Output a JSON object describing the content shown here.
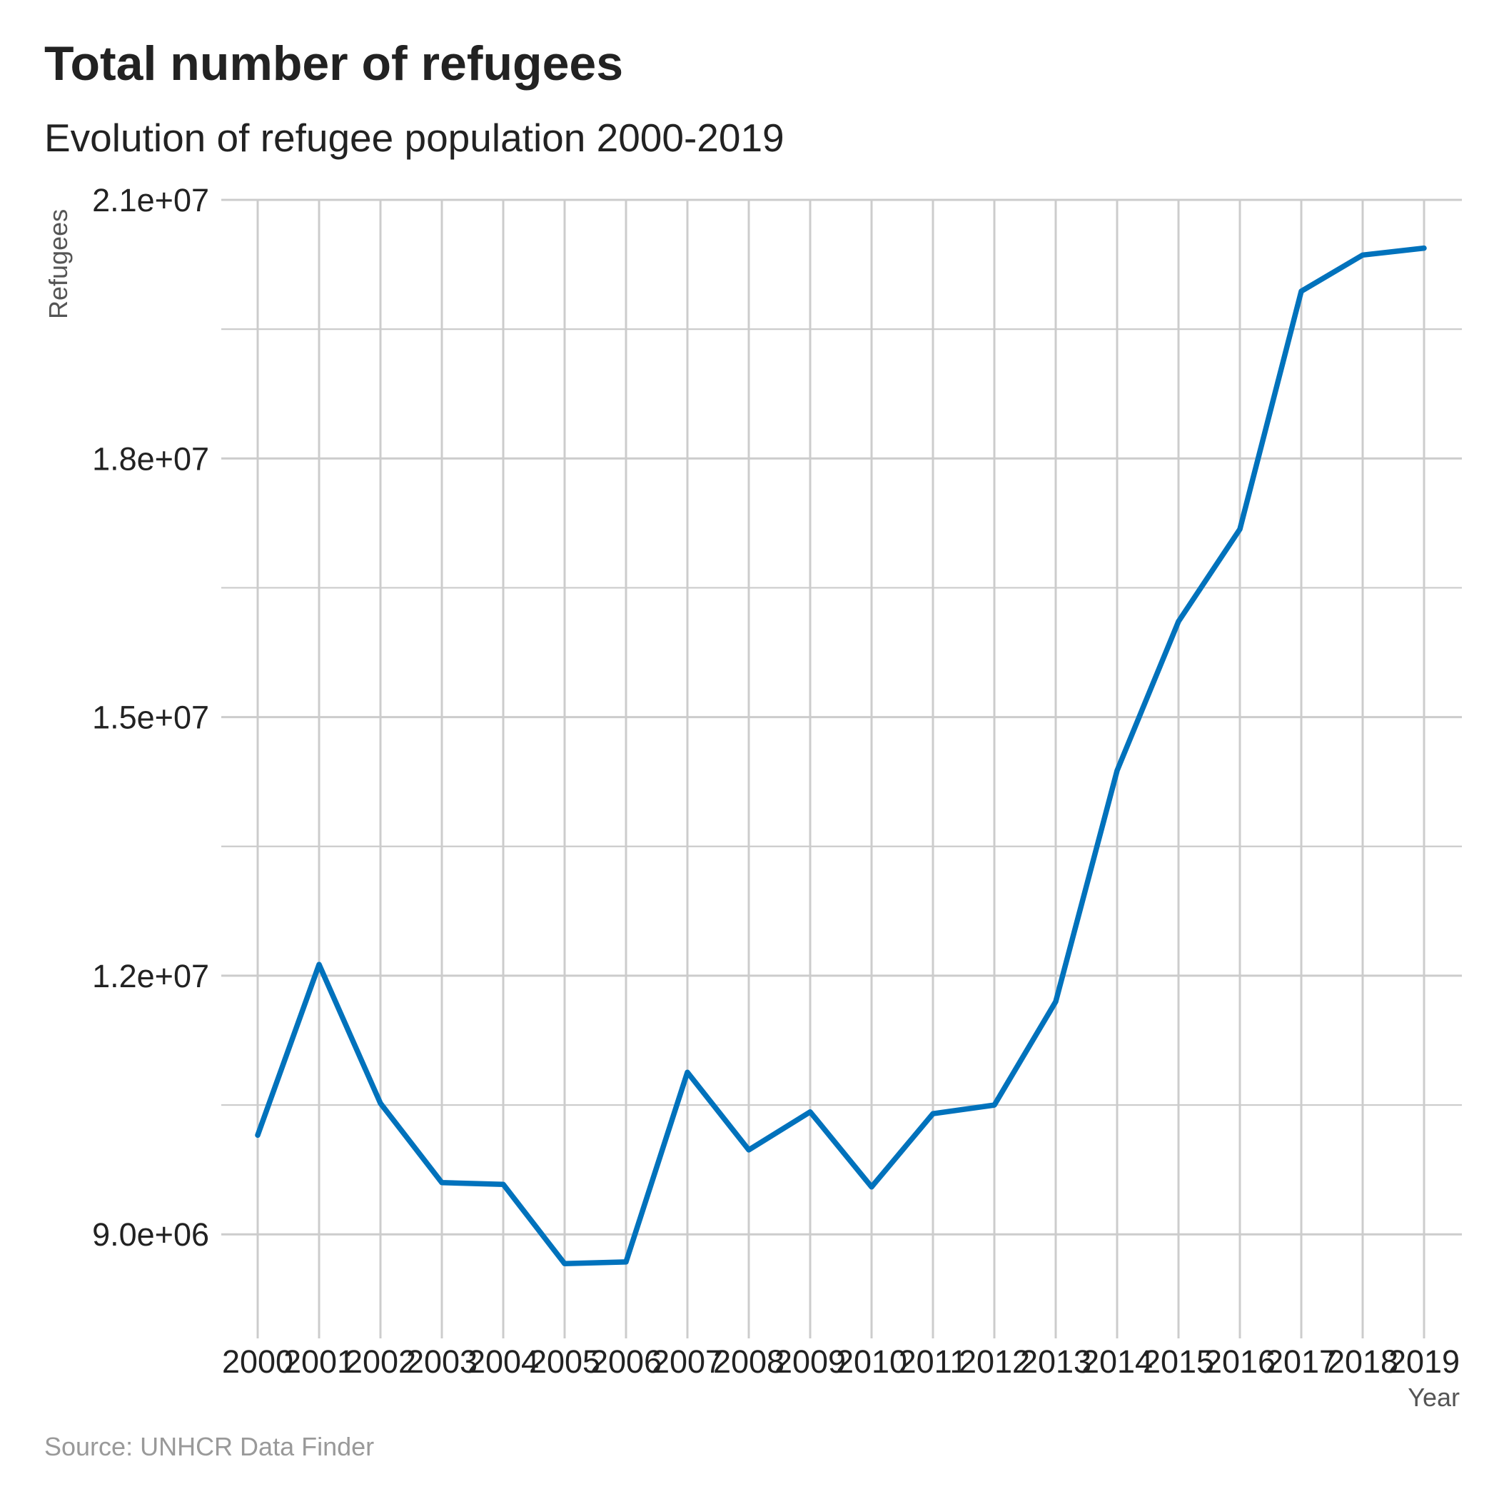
{
  "title": "Total number of refugees",
  "subtitle": "Evolution of refugee population 2000-2019",
  "caption": "Source: UNHCR Data Finder",
  "colors": {
    "line": "#0072BC",
    "grid": "#cccccc",
    "text": "#222222",
    "caption": "#999999"
  },
  "chart_data": {
    "type": "line",
    "title": "Total number of refugees",
    "subtitle": "Evolution of refugee population 2000-2019",
    "xlabel": "Year",
    "ylabel": "Refugees",
    "x": [
      2000,
      2001,
      2002,
      2003,
      2004,
      2005,
      2006,
      2007,
      2008,
      2009,
      2010,
      2011,
      2012,
      2013,
      2014,
      2015,
      2016,
      2017,
      2018,
      2019
    ],
    "x_tick_labels": [
      "2000",
      "2001",
      "2002",
      "2003",
      "2004",
      "2005",
      "2006",
      "2007",
      "2008",
      "2009",
      "2010",
      "2011",
      "2012",
      "2013",
      "2014",
      "2015",
      "2016",
      "2017",
      "2018",
      "2019"
    ],
    "series": [
      {
        "values": [
          10150000,
          12130000,
          10520000,
          9600000,
          9580000,
          8660000,
          8680000,
          10880000,
          9980000,
          10420000,
          9550000,
          10400000,
          10500000,
          11700000,
          14380000,
          16110000,
          17180000,
          19940000,
          20360000,
          20440000
        ]
      }
    ],
    "y_ticks": [
      9000000,
      12000000,
      15000000,
      18000000,
      21000000
    ],
    "y_tick_labels": [
      "9.0e+06",
      "1.2e+07",
      "1.5e+07",
      "1.8e+07",
      "2.1e+07"
    ],
    "ylim": [
      8000000,
      21000000
    ],
    "grid": true,
    "legend": "none"
  }
}
